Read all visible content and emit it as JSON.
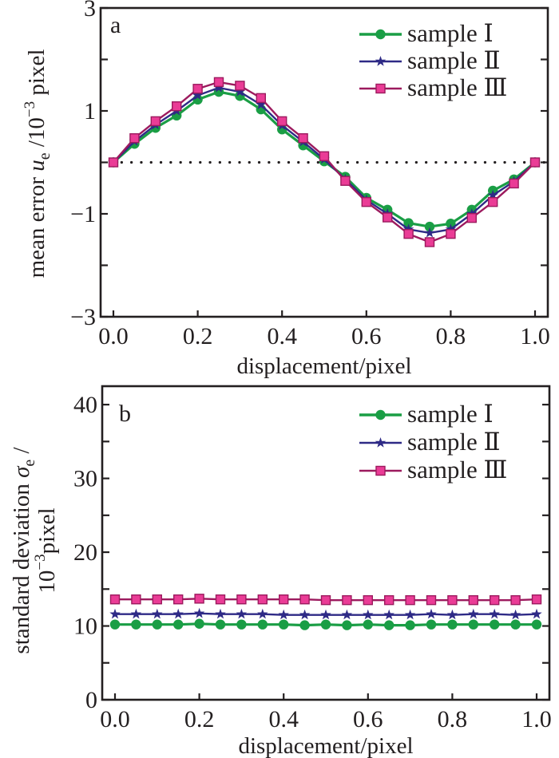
{
  "chart_data": [
    {
      "type": "line",
      "panel_label": "a",
      "title": "",
      "xlabel": "displacement/pixel",
      "ylabel": {
        "prefix": "mean error ",
        "symbol": "u",
        "subscript": "e",
        "unit_prefix": " /10",
        "exponent": "−3",
        "unit": " pixel"
      },
      "xlim": [
        0,
        1
      ],
      "ylim": [
        -3,
        3
      ],
      "x_ticks": [
        0.0,
        0.2,
        0.4,
        0.6,
        0.8,
        1.0
      ],
      "x_tick_labels": [
        "0.0",
        "0.2",
        "0.4",
        "0.6",
        "0.8",
        "1.0"
      ],
      "y_ticks": [
        3,
        2,
        1,
        0,
        -1,
        -2,
        -3
      ],
      "y_tick_labels": {
        "3": "3",
        "1": "1",
        "-1": "−1",
        "-3": "−3"
      },
      "reference_line": {
        "y": 0,
        "style": "dotted"
      },
      "grid": false,
      "legend_position": "top-right",
      "x": [
        0.0,
        0.05,
        0.1,
        0.15,
        0.2,
        0.25,
        0.3,
        0.35,
        0.4,
        0.45,
        0.5,
        0.55,
        0.6,
        0.65,
        0.7,
        0.75,
        0.8,
        0.85,
        0.9,
        0.95,
        1.0
      ],
      "series": [
        {
          "name": "sample Ⅰ",
          "color": "#1a9e45",
          "marker": "circle",
          "values": [
            0.0,
            0.36,
            0.67,
            0.91,
            1.22,
            1.37,
            1.29,
            1.03,
            0.64,
            0.33,
            0.02,
            -0.28,
            -0.69,
            -0.92,
            -1.18,
            -1.25,
            -1.19,
            -0.92,
            -0.55,
            -0.33,
            0.0
          ]
        },
        {
          "name": "sample Ⅱ",
          "color": "#2e2a86",
          "marker": "star",
          "values": [
            0.0,
            0.41,
            0.73,
            1.0,
            1.3,
            1.45,
            1.37,
            1.12,
            0.72,
            0.4,
            0.06,
            -0.33,
            -0.73,
            -1.0,
            -1.3,
            -1.37,
            -1.3,
            -1.0,
            -0.64,
            -0.37,
            0.0
          ]
        },
        {
          "name": "sample Ⅲ",
          "color": "#9c1a5e",
          "marker_fill": "#ea3c96",
          "marker": "square",
          "values": [
            0.0,
            0.47,
            0.8,
            1.09,
            1.43,
            1.56,
            1.49,
            1.25,
            0.8,
            0.47,
            0.12,
            -0.36,
            -0.77,
            -1.07,
            -1.39,
            -1.55,
            -1.39,
            -1.08,
            -0.77,
            -0.41,
            0.0
          ]
        }
      ]
    },
    {
      "type": "line",
      "panel_label": "b",
      "title": "",
      "xlabel": "displacement/pixel",
      "ylabel": {
        "line1_prefix": "standard deviation ",
        "symbol": "σ",
        "subscript": "e",
        "line1_suffix": " /",
        "line2_prefix": "10",
        "exponent": "−3",
        "unit": "pixel"
      },
      "xlim": [
        0,
        1
      ],
      "ylim": [
        0,
        42.5
      ],
      "x_ticks": [
        0.0,
        0.2,
        0.4,
        0.6,
        0.8,
        1.0
      ],
      "x_tick_labels": [
        "0.0",
        "0.2",
        "0.4",
        "0.6",
        "0.8",
        "1.0"
      ],
      "y_ticks": [
        0,
        5,
        10,
        15,
        20,
        25,
        30,
        35,
        40
      ],
      "y_tick_labels": {
        "0": "0",
        "10": "10",
        "20": "20",
        "30": "30",
        "40": "40"
      },
      "grid": false,
      "legend_position": "top-right",
      "x": [
        0.0,
        0.05,
        0.1,
        0.15,
        0.2,
        0.25,
        0.3,
        0.35,
        0.4,
        0.45,
        0.5,
        0.55,
        0.6,
        0.65,
        0.7,
        0.75,
        0.8,
        0.85,
        0.9,
        0.95,
        1.0
      ],
      "series": [
        {
          "name": "sample Ⅰ",
          "color": "#1a9e45",
          "marker": "circle",
          "values": [
            10.2,
            10.2,
            10.2,
            10.2,
            10.3,
            10.2,
            10.2,
            10.2,
            10.2,
            10.1,
            10.2,
            10.1,
            10.2,
            10.1,
            10.1,
            10.2,
            10.2,
            10.2,
            10.2,
            10.2,
            10.2
          ]
        },
        {
          "name": "sample Ⅱ",
          "color": "#2e2a86",
          "marker": "star",
          "values": [
            11.6,
            11.6,
            11.6,
            11.6,
            11.7,
            11.6,
            11.6,
            11.6,
            11.5,
            11.5,
            11.5,
            11.5,
            11.5,
            11.5,
            11.5,
            11.6,
            11.5,
            11.6,
            11.6,
            11.5,
            11.6
          ]
        },
        {
          "name": "sample Ⅲ",
          "color": "#9c1a5e",
          "marker_fill": "#ea3c96",
          "marker": "square",
          "values": [
            13.6,
            13.6,
            13.6,
            13.6,
            13.7,
            13.6,
            13.6,
            13.6,
            13.6,
            13.6,
            13.5,
            13.5,
            13.5,
            13.5,
            13.5,
            13.5,
            13.5,
            13.5,
            13.5,
            13.5,
            13.6
          ]
        }
      ]
    }
  ]
}
